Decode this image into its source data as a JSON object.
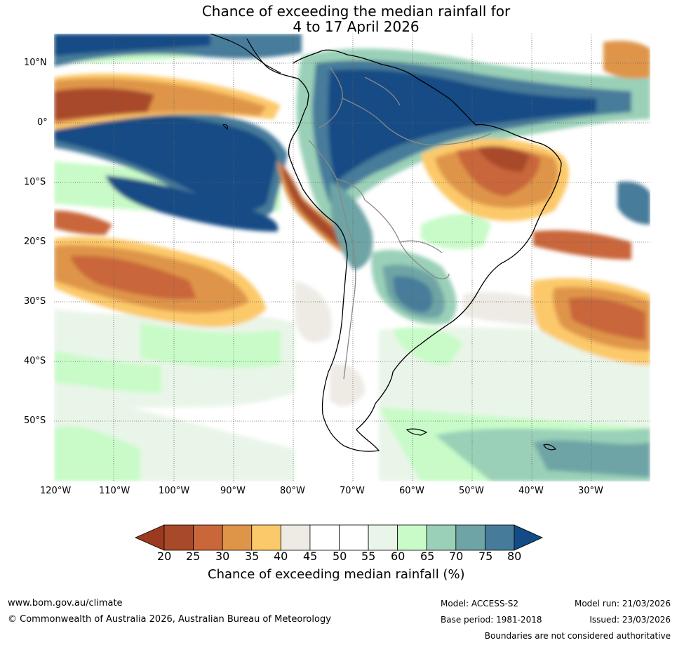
{
  "title_line1": "Chance of exceeding the median rainfall for",
  "title_line2": "4 to 17 April 2026",
  "lat_labels": [
    "10°N",
    "0°",
    "10°S",
    "20°S",
    "30°S",
    "40°S",
    "50°S"
  ],
  "lon_labels": [
    "120°W",
    "110°W",
    "100°W",
    "90°W",
    "80°W",
    "70°W",
    "60°W",
    "50°W",
    "40°W",
    "30°W"
  ],
  "colorbar": {
    "ticks": [
      "20",
      "25",
      "30",
      "35",
      "40",
      "45",
      "50",
      "55",
      "60",
      "65",
      "70",
      "75",
      "80"
    ],
    "title": "Chance of exceeding median rainfall (%)",
    "low_color": "#9b3a1f",
    "high_color": "#124b85",
    "colors": [
      "#a8492a",
      "#c9663a",
      "#df9548",
      "#fcc96a",
      "#eeebe5",
      "#ffffff",
      "#ffffff",
      "#e9f5e8",
      "#c8fbc8",
      "#9ad0b7",
      "#6ea4a5",
      "#467c9a"
    ]
  },
  "footer": {
    "website": "www.bom.gov.au/climate",
    "copyright": "© Commonwealth of Australia 2026, Australian Bureau of Meteorology",
    "model": "Model: ACCESS-S2",
    "base_period": "Base period: 1981-2018",
    "model_run": "Model run: 21/03/2026",
    "issued": "Issued: 23/03/2026",
    "disclaimer": "Boundaries are not considered authoritative"
  }
}
